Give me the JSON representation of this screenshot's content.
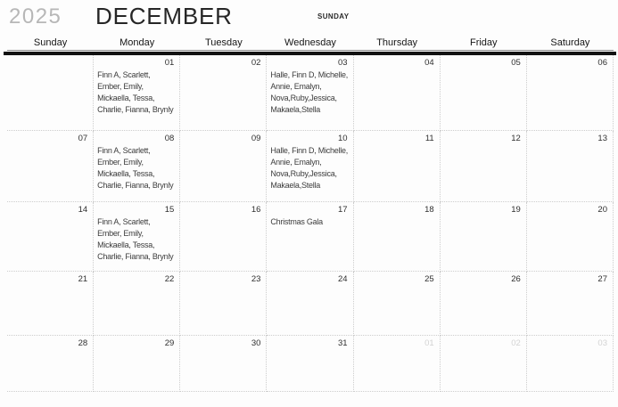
{
  "title": {
    "year": "2025",
    "month": "DECEMBER",
    "week_start_label": "SUNDAY"
  },
  "weekday_headers": [
    "Sunday",
    "Monday",
    "Tuesday",
    "Wednesday",
    "Thursday",
    "Friday",
    "Saturday"
  ],
  "weeks": [
    {
      "days": [
        {
          "num": "",
          "muted": false,
          "text": ""
        },
        {
          "num": "01",
          "muted": false,
          "text": "Finn A, Scarlett,\nEmber, Emily,\nMickaella, Tessa,\nCharlie, Fianna, Brynly"
        },
        {
          "num": "02",
          "muted": false,
          "text": ""
        },
        {
          "num": "03",
          "muted": false,
          "text": "Halle, Finn D, Michelle,\nAnnie, Emalyn,\nNova,Ruby,Jessica,\nMakaela,Stella"
        },
        {
          "num": "04",
          "muted": false,
          "text": ""
        },
        {
          "num": "05",
          "muted": false,
          "text": ""
        },
        {
          "num": "06",
          "muted": false,
          "text": ""
        }
      ]
    },
    {
      "days": [
        {
          "num": "07",
          "muted": false,
          "text": ""
        },
        {
          "num": "08",
          "muted": false,
          "text": "Finn A, Scarlett,\nEmber, Emily,\nMickaella, Tessa,\nCharlie, Fianna, Brynly"
        },
        {
          "num": "09",
          "muted": false,
          "text": ""
        },
        {
          "num": "10",
          "muted": false,
          "text": "Halle, Finn D, Michelle,\nAnnie, Emalyn,\nNova,Ruby,Jessica,\nMakaela,Stella"
        },
        {
          "num": "11",
          "muted": false,
          "text": ""
        },
        {
          "num": "12",
          "muted": false,
          "text": ""
        },
        {
          "num": "13",
          "muted": false,
          "text": ""
        }
      ]
    },
    {
      "days": [
        {
          "num": "14",
          "muted": false,
          "text": ""
        },
        {
          "num": "15",
          "muted": false,
          "text": "Finn A, Scarlett,\nEmber, Emily,\nMickaella, Tessa,\nCharlie, Fianna, Brynly"
        },
        {
          "num": "16",
          "muted": false,
          "text": ""
        },
        {
          "num": "17",
          "muted": false,
          "text": "Christmas Gala"
        },
        {
          "num": "18",
          "muted": false,
          "text": ""
        },
        {
          "num": "19",
          "muted": false,
          "text": ""
        },
        {
          "num": "20",
          "muted": false,
          "text": ""
        }
      ]
    },
    {
      "days": [
        {
          "num": "21",
          "muted": false,
          "text": ""
        },
        {
          "num": "22",
          "muted": false,
          "text": ""
        },
        {
          "num": "23",
          "muted": false,
          "text": ""
        },
        {
          "num": "24",
          "muted": false,
          "text": ""
        },
        {
          "num": "25",
          "muted": false,
          "text": ""
        },
        {
          "num": "26",
          "muted": false,
          "text": ""
        },
        {
          "num": "27",
          "muted": false,
          "text": ""
        }
      ]
    },
    {
      "days": [
        {
          "num": "28",
          "muted": false,
          "text": ""
        },
        {
          "num": "29",
          "muted": false,
          "text": ""
        },
        {
          "num": "30",
          "muted": false,
          "text": ""
        },
        {
          "num": "31",
          "muted": false,
          "text": ""
        },
        {
          "num": "01",
          "muted": true,
          "text": ""
        },
        {
          "num": "02",
          "muted": true,
          "text": ""
        },
        {
          "num": "03",
          "muted": true,
          "text": ""
        }
      ]
    }
  ],
  "colors": {
    "year_text": "#b7b7b7",
    "month_text": "#262626",
    "muted_date": "#d3d3d3",
    "grid_line": "#cdcdcd",
    "header_rule": "#121212"
  }
}
